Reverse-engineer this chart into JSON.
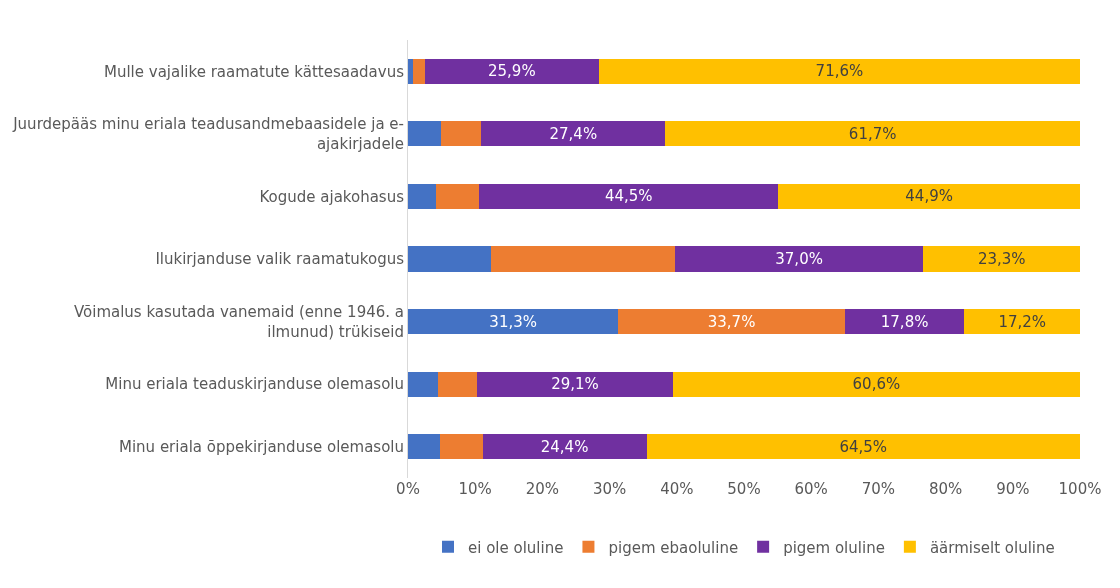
{
  "chart_data": {
    "type": "bar",
    "orientation": "horizontal",
    "stacked": true,
    "categories": [
      "Mulle vajalike raamatute kättesaadavus",
      "Juurdepääs minu eriala teadusandmebaasidele ja e-\najakirjadele",
      "Kogude ajakohasus",
      "Ilukirjanduse valik raamatukogus",
      "Võimalus kasutada vanemaid (enne 1946. a\nilmunud) trükiseid",
      "Minu eriala teaduskirjanduse olemasolu",
      "Minu eriala õppekirjanduse olemasolu"
    ],
    "series": [
      {
        "name": "ei ole oluline",
        "color": "#4472c4",
        "values": [
          0.8,
          4.9,
          4.2,
          12.3,
          31.3,
          4.4,
          4.8
        ],
        "value_labels": [
          null,
          null,
          null,
          null,
          "31,3%",
          null,
          null
        ]
      },
      {
        "name": "pigem ebaoluline",
        "color": "#ed7d31",
        "values": [
          1.7,
          6.0,
          6.4,
          27.4,
          33.7,
          5.9,
          6.3
        ],
        "value_labels": [
          null,
          null,
          null,
          null,
          "33,7%",
          null,
          null
        ]
      },
      {
        "name": "pigem oluline",
        "color": "#7030a0",
        "values": [
          25.9,
          27.4,
          44.5,
          37.0,
          17.8,
          29.1,
          24.4
        ],
        "value_labels": [
          "25,9%",
          "27,4%",
          "44,5%",
          "37,0%",
          "17,8%",
          "29,1%",
          "24,4%"
        ]
      },
      {
        "name": "äärmiselt oluline",
        "color": "#ffc000",
        "values": [
          71.6,
          61.7,
          44.9,
          23.3,
          17.2,
          60.6,
          64.5
        ],
        "value_labels": [
          "71,6%",
          "61,7%",
          "44,9%",
          "23,3%",
          "17,2%",
          "60,6%",
          "64,5%"
        ]
      }
    ],
    "xlim": [
      0,
      100
    ],
    "xticks": [
      {
        "value": 0,
        "label": "0%"
      },
      {
        "value": 10,
        "label": "10%"
      },
      {
        "value": 20,
        "label": "20%"
      },
      {
        "value": 30,
        "label": "30%"
      },
      {
        "value": 40,
        "label": "40%"
      },
      {
        "value": 50,
        "label": "50%"
      },
      {
        "value": 60,
        "label": "60%"
      },
      {
        "value": 70,
        "label": "70%"
      },
      {
        "value": 80,
        "label": "80%"
      },
      {
        "value": 90,
        "label": "90%"
      },
      {
        "value": 100,
        "label": "100%"
      }
    ],
    "legend": "bottom"
  }
}
